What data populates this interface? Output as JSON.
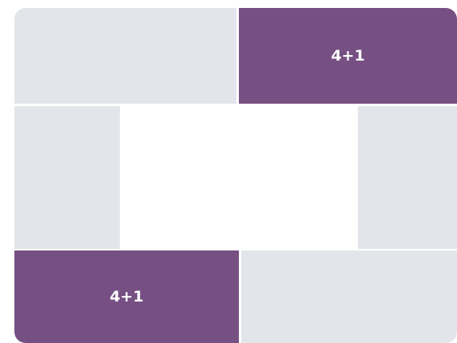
{
  "tiles": [
    {
      "label": "4+1"
    },
    {
      "label": "4+1"
    }
  ]
}
